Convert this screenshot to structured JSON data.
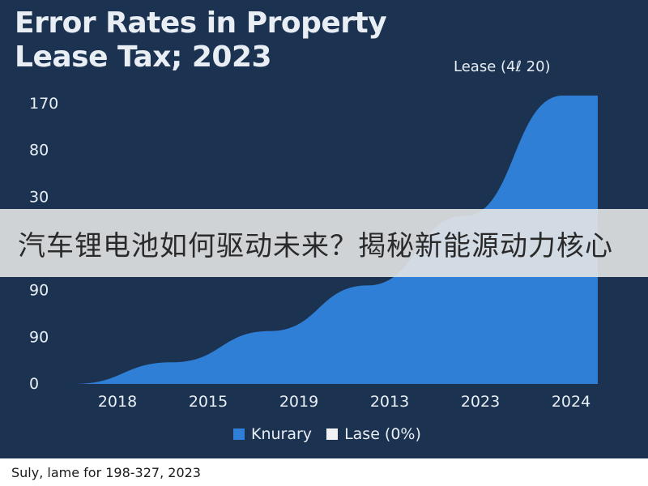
{
  "chart_data": {
    "type": "area",
    "title": "Error Rates in Property Lease Tax; 2023",
    "annotation": "Lease (4ℓ 20)",
    "categories": [
      "2018",
      "2015",
      "2019",
      "2013",
      "2023",
      "2024"
    ],
    "y_ticks": [
      "170",
      "80",
      "30",
      "",
      "90",
      "90",
      "0"
    ],
    "series": [
      {
        "name": "Knurary",
        "values": [
          0,
          9,
          22,
          41,
          70,
          120
        ]
      }
    ],
    "legend": [
      {
        "label": "Knurary",
        "color": "#2f7fd6"
      },
      {
        "label": "Lase (0%)",
        "color": "#f2f2f2"
      }
    ],
    "legend_position": "bottom-center",
    "colors": {
      "background": "#1b3350",
      "area": "#2f7fd6",
      "text": "#e9eef5"
    }
  },
  "source_note": "Suly, lame for 198-327, 2023",
  "watermark": "汽车锂电池如何驱动未来？揭秘新能源动力核心"
}
